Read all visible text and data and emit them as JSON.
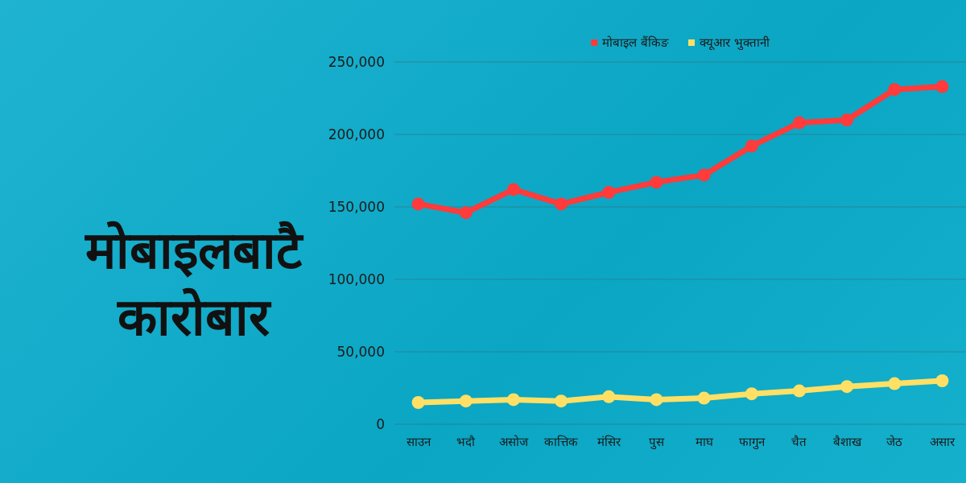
{
  "chart_data": {
    "type": "line",
    "title": "मोबाइलबाटै कारोबार",
    "categories": [
      "साउन",
      "भदौ",
      "असोज",
      "कात्तिक",
      "मंसिर",
      "पुस",
      "माघ",
      "फागुन",
      "चैत",
      "बैशाख",
      "जेठ",
      "असार"
    ],
    "series": [
      {
        "name": "मोबाइल बैंकिङ",
        "color": "#ff3b3b",
        "values": [
          152000,
          146000,
          162000,
          152000,
          160000,
          167000,
          172000,
          192000,
          208000,
          210000,
          231000,
          233000
        ]
      },
      {
        "name": "क्यूआर भुक्तानी",
        "color": "#ffe065",
        "values": [
          15000,
          16000,
          17000,
          16000,
          19000,
          17000,
          18000,
          21000,
          23000,
          26000,
          28000,
          30000
        ]
      }
    ],
    "ylim": [
      0,
      250000
    ],
    "yticks": [
      0,
      {
        "value": 50000,
        "label": "50,000"
      },
      {
        "value": 100000,
        "label": "100,000"
      },
      {
        "value": 150000,
        "label": "150,000"
      },
      {
        "value": 200000,
        "label": "200,000"
      },
      {
        "value": 250000,
        "label": "250,000"
      }
    ],
    "grid": "y",
    "legend": "top",
    "marker": "circle",
    "line_style": "solid"
  }
}
